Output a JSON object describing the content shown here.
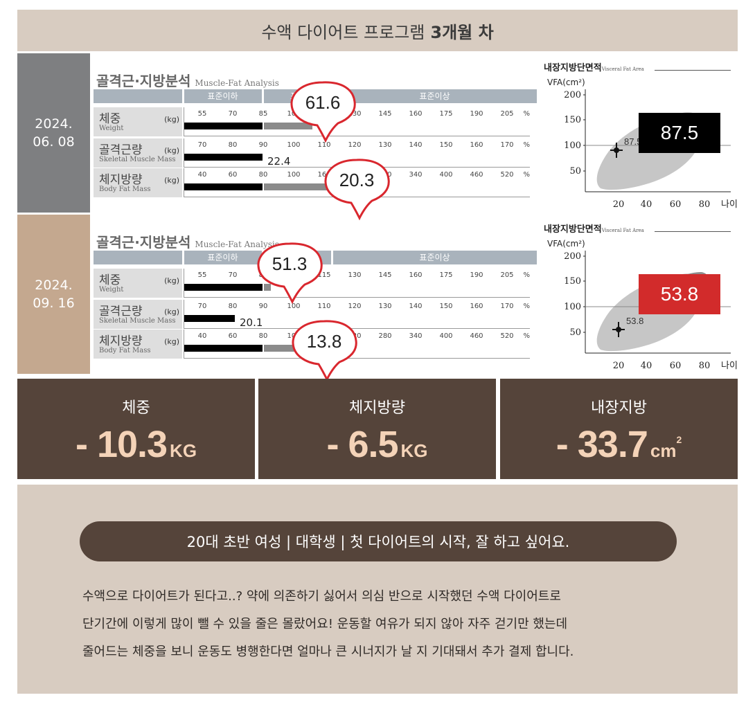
{
  "header": {
    "title": "수액 다이어트 프로그램",
    "title_bold": "3개월 차"
  },
  "scale_headers": {
    "below": "표준이하",
    "standard": "표준",
    "above": "표준이상"
  },
  "mfa_title": "골격근·지방분석",
  "mfa_subtitle": "Muscle-Fat Analysis",
  "vfa_title": "내장지방단면적",
  "vfa_subtitle": "Visceral Fat Area",
  "vfa_ylabel": "VFA(cm²)",
  "vfa_xlabel": "나이",
  "vfa_xticks": [
    "20",
    "40",
    "60",
    "80"
  ],
  "vfa_yticks": [
    "200",
    "150",
    "100",
    "50"
  ],
  "percent_sign": "%",
  "measurements": [
    {
      "date_line1": "2024.",
      "date_line2": "06. 08",
      "rows": [
        {
          "label_ko": "체중",
          "label_en": "Weight",
          "unit": "(kg)",
          "ticks": [
            "55",
            "70",
            "85",
            "100",
            "115",
            "130",
            "145",
            "160",
            "175",
            "190",
            "205"
          ],
          "callout": "61.6"
        },
        {
          "label_ko": "골격근량",
          "label_en": "Skeletal Muscle Mass",
          "unit": "(kg)",
          "ticks": [
            "70",
            "80",
            "90",
            "100",
            "110",
            "120",
            "130",
            "140",
            "150",
            "160",
            "170"
          ],
          "value": "22.4"
        },
        {
          "label_ko": "체지방량",
          "label_en": "Body Fat Mass",
          "unit": "(kg)",
          "ticks": [
            "40",
            "60",
            "80",
            "100",
            "160",
            "220",
            "280",
            "340",
            "400",
            "460",
            "520"
          ],
          "callout": "20.3"
        }
      ],
      "vfa_value": "87.5",
      "vfa_point_label": "87.5"
    },
    {
      "date_line1": "2024.",
      "date_line2": "09. 16",
      "rows": [
        {
          "label_ko": "체중",
          "label_en": "Weight",
          "unit": "(kg)",
          "ticks": [
            "55",
            "70",
            "85",
            "100",
            "115",
            "130",
            "145",
            "160",
            "175",
            "190",
            "205"
          ],
          "callout": "51.3"
        },
        {
          "label_ko": "골격근량",
          "label_en": "Skeletal Muscle Mass",
          "unit": "(kg)",
          "ticks": [
            "70",
            "80",
            "90",
            "100",
            "110",
            "120",
            "130",
            "140",
            "150",
            "160",
            "170"
          ],
          "value": "20.1"
        },
        {
          "label_ko": "체지방량",
          "label_en": "Body Fat Mass",
          "unit": "(kg)",
          "ticks": [
            "40",
            "60",
            "80",
            "100",
            "160",
            "220",
            "280",
            "340",
            "400",
            "460",
            "520"
          ],
          "callout": "13.8"
        }
      ],
      "vfa_value": "53.8",
      "vfa_point_label": "53.8"
    }
  ],
  "stats": [
    {
      "title": "체중",
      "value": "- 10.3",
      "unit": "KG",
      "sup": ""
    },
    {
      "title": "체지방량",
      "value": "- 6.5",
      "unit": "KG",
      "sup": ""
    },
    {
      "title": "내장지방",
      "value": "- 33.7",
      "unit": "cm",
      "sup": "2"
    }
  ],
  "review": {
    "headline": "20대 초반 여성 | 대학생 | 첫 다이어트의 시작, 잘 하고 싶어요.",
    "lines": [
      "수액으로 다이어트가 된다고..? 약에 의존하기 싫어서 의심 반으로 시작했던 수액 다이어트로",
      "단기간에 이렇게 많이 뺄 수 있을 줄은 몰랐어요! 운동할 여유가 되지 않아 자주 걷기만 했는데",
      "줄어드는 체중을 보니 운동도 병행한다면 얼마나 큰 시너지가 날 지 기대돼서 추가 결제 합니다."
    ]
  },
  "colors": {
    "accent_brown": "#55443a",
    "beige": "#d8ccc1",
    "callout_red": "#d9272e",
    "highlight_red": "#d22b2b"
  }
}
